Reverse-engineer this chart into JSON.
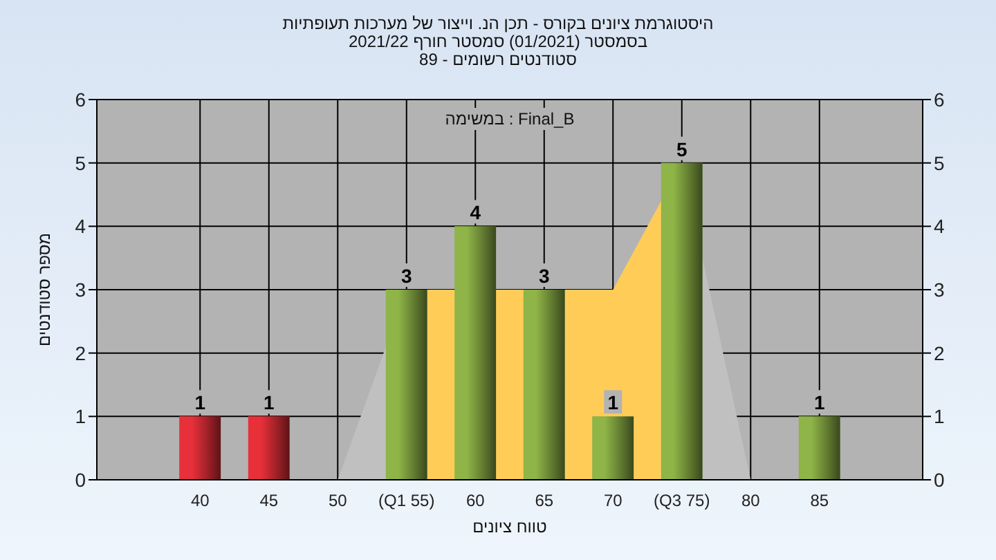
{
  "chart_data": {
    "type": "bar",
    "title": "היסטוגרמת ציונים בקורס - תכן הנ. וייצור של מערכות תעופתיות",
    "subtitle": "בסמסטר (01/2021) סמסטר חורף 2021/22\nסטודנטים רשומים - 89",
    "xlabel": "טווח ציונים",
    "ylabel": "מספר סטודנטים",
    "annotations": [
      "במשימה : Final_B"
    ],
    "categories": [
      "40",
      "45",
      "50",
      "(Q1 55)",
      "60",
      "65",
      "70",
      "(Q3 75)",
      "80",
      "85"
    ],
    "series": [
      {
        "type": "area",
        "color": "#c0c0c0",
        "values": [
          null,
          null,
          0,
          3,
          null,
          null,
          null,
          null,
          null,
          null
        ]
      },
      {
        "type": "area",
        "color": "#c0c0c0",
        "values": [
          null,
          null,
          null,
          null,
          null,
          null,
          null,
          5,
          0,
          null
        ]
      },
      {
        "type": "area",
        "color": "#ffcc58",
        "values": [
          null,
          null,
          null,
          3,
          null,
          3,
          3,
          5,
          null,
          null
        ]
      },
      {
        "value_labels": [
          "1",
          "1",
          null,
          "3",
          "4",
          "3",
          "1",
          "5",
          null,
          "1"
        ],
        "colors": [
          "#e8303a",
          "#e8303a",
          "#8fb447",
          "#8fb447",
          "#8fb447",
          "#8fb447",
          "#8fb447",
          "#8fb447",
          "#8fb447",
          "#8fb447"
        ],
        "values": [
          1,
          1,
          0,
          3,
          4,
          3,
          1,
          5,
          0,
          1
        ]
      }
    ],
    "ylim": [
      0,
      6
    ],
    "yticks": [
      0,
      1,
      2,
      3,
      4,
      5,
      6
    ],
    "y2lim": [
      0,
      6
    ],
    "y2ticks": [
      0,
      1,
      2,
      3,
      4,
      5,
      6
    ],
    "grid": true
  }
}
